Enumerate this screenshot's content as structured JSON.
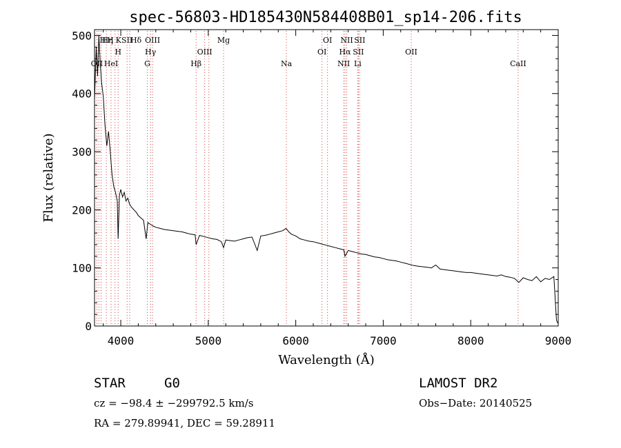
{
  "chart_data": {
    "type": "line",
    "title": "spec-56803-HD185430N584408B01_sp14-206.fits",
    "xlabel": "Wavelength (Å)",
    "ylabel": "Flux (relative)",
    "xlim": [
      3700,
      9000
    ],
    "ylim": [
      0,
      510
    ],
    "xticks": [
      4000,
      5000,
      6000,
      7000,
      8000,
      9000
    ],
    "xtick_labels": [
      "4000",
      "5000",
      "6000",
      "7000",
      "8000",
      "9000"
    ],
    "yticks": [
      0,
      100,
      200,
      300,
      400,
      500
    ],
    "ytick_labels": [
      "0",
      "100",
      "200",
      "300",
      "400",
      "500"
    ],
    "grid": false,
    "series": [
      {
        "x": [
          3700,
          3720,
          3735,
          3750,
          3765,
          3780,
          3800,
          3820,
          3840,
          3860,
          3880,
          3900,
          3920,
          3940,
          3960,
          3970,
          3985,
          4000,
          4020,
          4040,
          4060,
          4080,
          4100,
          4120,
          4150,
          4180,
          4200,
          4230,
          4260,
          4290,
          4310,
          4340,
          4370,
          4400,
          4450,
          4500,
          4550,
          4600,
          4650,
          4700,
          4750,
          4800,
          4850,
          4861,
          4900,
          4950,
          5000,
          5050,
          5100,
          5150,
          5175,
          5200,
          5250,
          5300,
          5350,
          5400,
          5450,
          5500,
          5560,
          5600,
          5650,
          5700,
          5750,
          5800,
          5850,
          5890,
          5920,
          5950,
          6000,
          6050,
          6100,
          6150,
          6200,
          6250,
          6300,
          6350,
          6400,
          6450,
          6500,
          6550,
          6563,
          6600,
          6650,
          6700,
          6750,
          6800,
          6850,
          6900,
          6950,
          7000,
          7050,
          7100,
          7150,
          7200,
          7250,
          7300,
          7350,
          7400,
          7450,
          7500,
          7550,
          7600,
          7650,
          7700,
          7750,
          7800,
          7850,
          7900,
          7950,
          8000,
          8050,
          8100,
          8150,
          8200,
          8250,
          8300,
          8350,
          8400,
          8450,
          8500,
          8550,
          8600,
          8650,
          8700,
          8750,
          8800,
          8850,
          8900,
          8950,
          8980,
          8995
        ],
        "y": [
          390,
          480,
          430,
          500,
          455,
          420,
          395,
          345,
          310,
          335,
          300,
          260,
          240,
          230,
          215,
          150,
          225,
          235,
          222,
          230,
          215,
          220,
          210,
          205,
          200,
          195,
          190,
          186,
          182,
          150,
          178,
          175,
          172,
          170,
          168,
          166,
          165,
          164,
          163,
          162,
          160,
          158,
          157,
          140,
          156,
          154,
          152,
          150,
          149,
          145,
          135,
          148,
          147,
          146,
          148,
          150,
          152,
          153,
          130,
          155,
          156,
          158,
          160,
          162,
          164,
          168,
          162,
          158,
          155,
          150,
          148,
          146,
          145,
          143,
          141,
          139,
          137,
          135,
          133,
          131,
          120,
          130,
          128,
          126,
          124,
          123,
          121,
          119,
          118,
          116,
          114,
          113,
          112,
          110,
          108,
          106,
          104,
          103,
          102,
          101,
          100,
          105,
          98,
          97,
          96,
          95,
          94,
          93,
          92,
          92,
          91,
          90,
          89,
          88,
          87,
          86,
          88,
          85,
          84,
          82,
          75,
          83,
          80,
          78,
          85,
          76,
          82,
          80,
          85,
          10,
          5
        ]
      }
    ],
    "lines": [
      {
        "w": 3727,
        "label": "OII",
        "row": 3,
        "anchor": "middle"
      },
      {
        "w": 3750,
        "label": "H",
        "row": 1,
        "anchor": "start"
      },
      {
        "w": 3775,
        "label": "Hη",
        "row": 1,
        "anchor": "start"
      },
      {
        "w": 3835,
        "label": "H",
        "row": 1,
        "anchor": "start"
      },
      {
        "w": 3889,
        "label": "HeI",
        "row": 3,
        "anchor": "middle"
      },
      {
        "w": 3934,
        "label": "K",
        "row": 1,
        "anchor": "start"
      },
      {
        "w": 3970,
        "label": "H",
        "row": 2,
        "anchor": "middle"
      },
      {
        "w": 4072,
        "label": "SII",
        "row": 1,
        "anchor": "middle"
      },
      {
        "w": 4102,
        "label": "Hδ",
        "row": 1,
        "anchor": "start"
      },
      {
        "w": 4304,
        "label": "G",
        "row": 3,
        "anchor": "middle"
      },
      {
        "w": 4340,
        "label": "Hγ",
        "row": 2,
        "anchor": "middle"
      },
      {
        "w": 4363,
        "label": "OIII",
        "row": 1,
        "anchor": "middle"
      },
      {
        "w": 4861,
        "label": "Hβ",
        "row": 3,
        "anchor": "middle"
      },
      {
        "w": 4959,
        "label": "OIII",
        "row": 2,
        "anchor": "middle"
      },
      {
        "w": 5007,
        "label": "",
        "row": 0,
        "anchor": "middle"
      },
      {
        "w": 5175,
        "label": "Mg",
        "row": 1,
        "anchor": "middle"
      },
      {
        "w": 5893,
        "label": "Na",
        "row": 3,
        "anchor": "middle"
      },
      {
        "w": 6300,
        "label": "OI",
        "row": 2,
        "anchor": "middle"
      },
      {
        "w": 6363,
        "label": "OI",
        "row": 1,
        "anchor": "middle"
      },
      {
        "w": 6548,
        "label": "NII",
        "row": 3,
        "anchor": "middle"
      },
      {
        "w": 6563,
        "label": "Hα",
        "row": 2,
        "anchor": "middle"
      },
      {
        "w": 6583,
        "label": "NII",
        "row": 1,
        "anchor": "middle"
      },
      {
        "w": 6708,
        "label": "Li",
        "row": 3,
        "anchor": "middle"
      },
      {
        "w": 6716,
        "label": "SII",
        "row": 2,
        "anchor": "middle"
      },
      {
        "w": 6731,
        "label": "SII",
        "row": 1,
        "anchor": "middle"
      },
      {
        "w": 7320,
        "label": "OII",
        "row": 2,
        "anchor": "middle"
      },
      {
        "w": 8542,
        "label": "CaII",
        "row": 3,
        "anchor": "middle"
      }
    ]
  },
  "info": {
    "object_class": "STAR",
    "subclass": "G0",
    "survey": "LAMOST DR2",
    "cz": "cz = −98.4 ± −299792.5 km/s",
    "obs_date": "Obs−Date: 20140525",
    "coords": "RA = 279.89941, DEC =  59.28911"
  },
  "colors": {
    "spectrum": "#000000",
    "line_markers": "#d23c3c",
    "background": "#ffffff"
  }
}
